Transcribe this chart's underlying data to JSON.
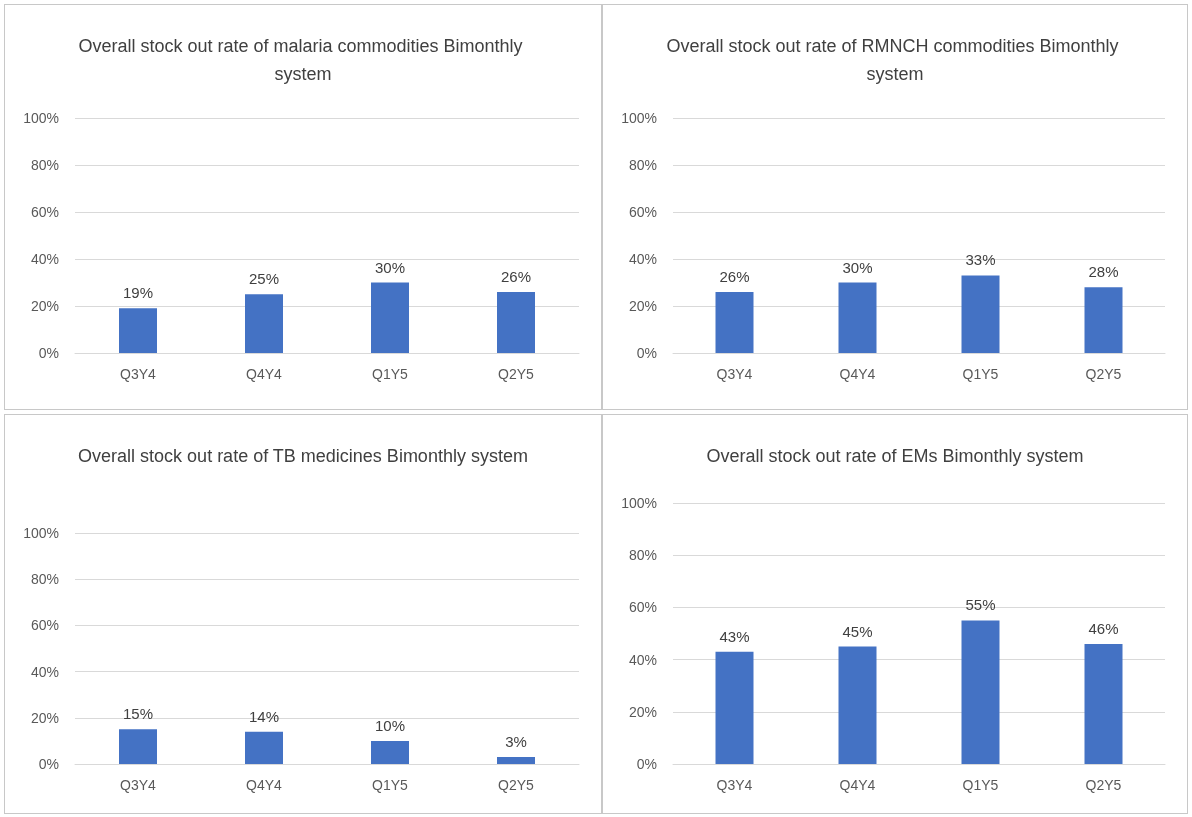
{
  "chart_data": [
    {
      "type": "bar",
      "title": "Overall stock out rate of malaria commodities Bimonthly system",
      "categories": [
        "Q3Y4",
        "Q4Y4",
        "Q1Y5",
        "Q2Y5"
      ],
      "values": [
        19,
        25,
        30,
        26
      ],
      "value_labels": [
        "19%",
        "25%",
        "30%",
        "26%"
      ],
      "color": "#4472c4",
      "ylim": [
        0,
        100
      ],
      "yticks": [
        {
          "value": 0,
          "label": "0%"
        },
        {
          "value": 20,
          "label": "20%"
        },
        {
          "value": 40,
          "label": "40%"
        },
        {
          "value": 60,
          "label": "60%"
        },
        {
          "value": 80,
          "label": "80%"
        },
        {
          "value": 100,
          "label": "100%"
        }
      ],
      "grid": "y"
    },
    {
      "type": "bar",
      "title": "Overall stock out rate of RMNCH commodities Bimonthly system",
      "categories": [
        "Q3Y4",
        "Q4Y4",
        "Q1Y5",
        "Q2Y5"
      ],
      "values": [
        26,
        30,
        33,
        28
      ],
      "value_labels": [
        "26%",
        "30%",
        "33%",
        "28%"
      ],
      "color": "#4472c4",
      "ylim": [
        0,
        100
      ],
      "yticks": [
        {
          "value": 0,
          "label": "0%"
        },
        {
          "value": 20,
          "label": "20%"
        },
        {
          "value": 40,
          "label": "40%"
        },
        {
          "value": 60,
          "label": "60%"
        },
        {
          "value": 80,
          "label": "80%"
        },
        {
          "value": 100,
          "label": "100%"
        }
      ],
      "grid": "y"
    },
    {
      "type": "bar",
      "title": "Overall stock out rate of TB medicines Bimonthly system",
      "categories": [
        "Q3Y4",
        "Q4Y4",
        "Q1Y5",
        "Q2Y5"
      ],
      "values": [
        15,
        14,
        10,
        3
      ],
      "value_labels": [
        "15%",
        "14%",
        "10%",
        "3%"
      ],
      "color": "#4472c4",
      "ylim": [
        0,
        100
      ],
      "yticks": [
        {
          "value": 0,
          "label": "0%"
        },
        {
          "value": 20,
          "label": "20%"
        },
        {
          "value": 40,
          "label": "40%"
        },
        {
          "value": 60,
          "label": "60%"
        },
        {
          "value": 80,
          "label": "80%"
        },
        {
          "value": 100,
          "label": "100%"
        }
      ],
      "grid": "y"
    },
    {
      "type": "bar",
      "title": "Overall stock out rate of EMs Bimonthly system",
      "categories": [
        "Q3Y4",
        "Q4Y4",
        "Q1Y5",
        "Q2Y5"
      ],
      "values": [
        43,
        45,
        55,
        46
      ],
      "value_labels": [
        "43%",
        "45%",
        "55%",
        "46%"
      ],
      "color": "#4472c4",
      "ylim": [
        0,
        100
      ],
      "yticks": [
        {
          "value": 0,
          "label": "0%"
        },
        {
          "value": 20,
          "label": "20%"
        },
        {
          "value": 40,
          "label": "40%"
        },
        {
          "value": 60,
          "label": "60%"
        },
        {
          "value": 80,
          "label": "80%"
        },
        {
          "value": 100,
          "label": "100%"
        }
      ],
      "grid": "y"
    }
  ]
}
